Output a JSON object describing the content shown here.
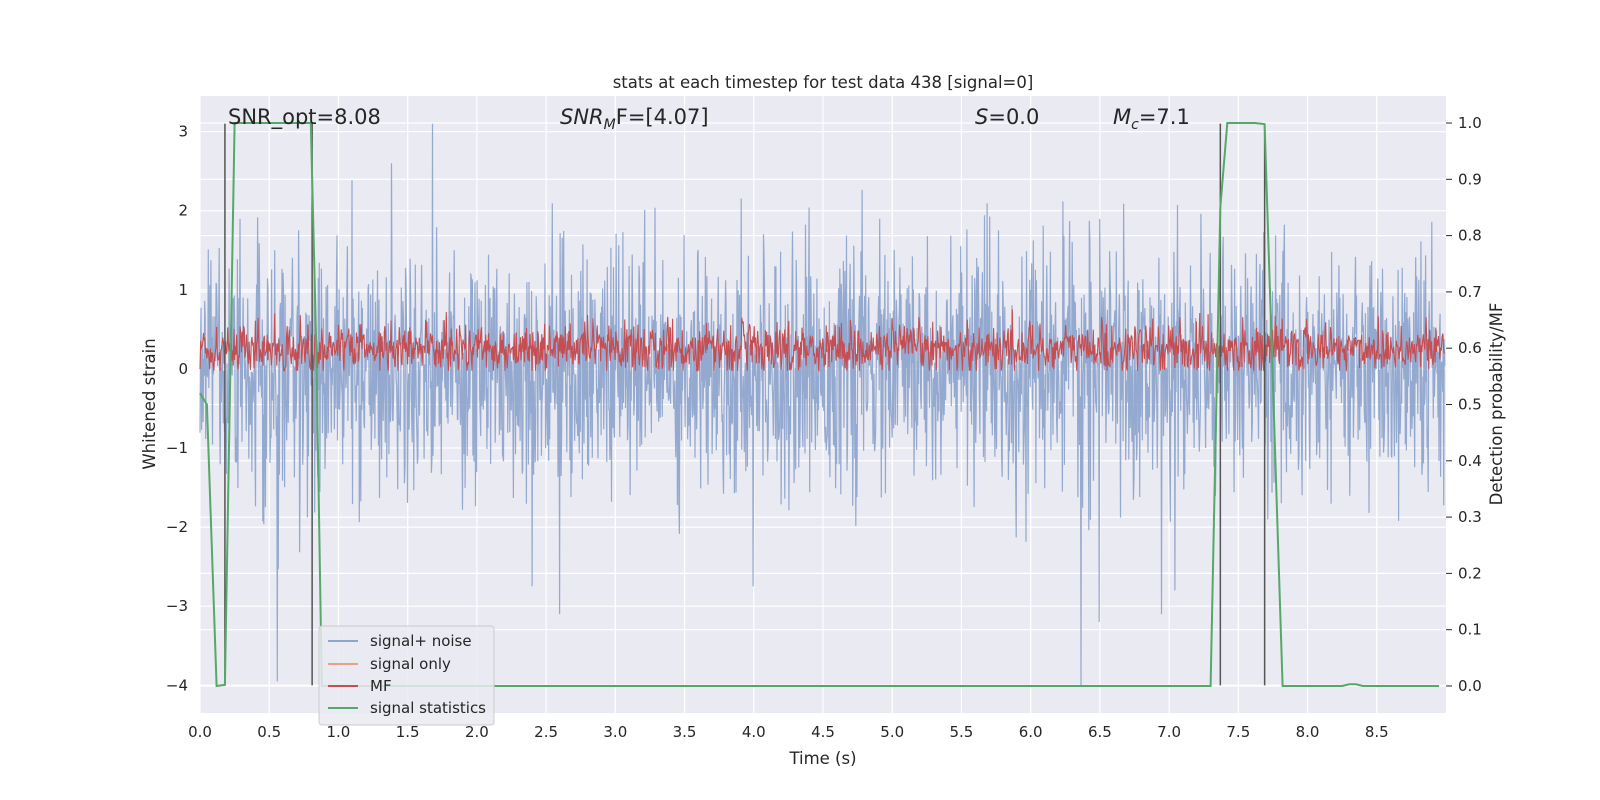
{
  "chart_data": {
    "type": "line",
    "title": "stats at each timestep for test data 438 [signal=0]",
    "xlabel": "Time (s)",
    "ylabel": "Whitened strain",
    "y2label": "Detection probability/MF",
    "xlim": [
      0.0,
      9.0
    ],
    "ylim": [
      -4.35,
      3.45
    ],
    "y2lim": [
      -0.048,
      1.048
    ],
    "grid": true,
    "legend_position": "lower-left",
    "x_ticks": [
      "0.0",
      "0.5",
      "1.0",
      "1.5",
      "2.0",
      "2.5",
      "3.0",
      "3.5",
      "4.0",
      "4.5",
      "5.0",
      "5.5",
      "6.0",
      "6.5",
      "7.0",
      "7.5",
      "8.0",
      "8.5"
    ],
    "y_ticks": [
      "−4",
      "−3",
      "−2",
      "−1",
      "0",
      "1",
      "2",
      "3"
    ],
    "y2_ticks": [
      "0.0",
      "0.1",
      "0.2",
      "0.3",
      "0.4",
      "0.5",
      "0.6",
      "0.7",
      "0.8",
      "0.9",
      "1.0"
    ],
    "annotations": {
      "snr_opt": "SNR_opt=8.08",
      "snr_mf_sym": "SNR",
      "snr_mf_sub": "M",
      "snr_mf_rest": "F=[4.07]",
      "s_sym": "S",
      "s_rest": "=0.0",
      "mc_sym": "M",
      "mc_sub": "c",
      "mc_rest": "=7.1"
    },
    "vertical_lines_x": [
      0.18,
      0.81,
      7.37,
      7.69
    ],
    "series": [
      {
        "name": "signal+ noise",
        "color": "#8fa5cc",
        "axis": "left",
        "kind": "noise",
        "amplitude_sd": 0.75,
        "notable_peaks": [
          [
            0.56,
            -3.95
          ],
          [
            1.68,
            3.1
          ],
          [
            2.4,
            -2.75
          ],
          [
            2.6,
            -3.1
          ],
          [
            4.0,
            -2.75
          ],
          [
            6.37,
            -4.0
          ],
          [
            6.5,
            -3.2
          ],
          [
            6.95,
            -3.1
          ],
          [
            7.05,
            -2.8
          ]
        ]
      },
      {
        "name": "signal only",
        "color": "#e8a183",
        "axis": "left",
        "values": []
      },
      {
        "name": "MF",
        "color": "#c44e52",
        "axis": "right",
        "kind": "noise",
        "baseline": 0.6,
        "range": [
          0.56,
          0.68
        ]
      },
      {
        "name": "signal statistics",
        "color": "#55a868",
        "axis": "right",
        "x": [
          0.0,
          0.05,
          0.12,
          0.18,
          0.25,
          0.8,
          0.84,
          0.88,
          1.0,
          7.3,
          7.37,
          7.42,
          7.62,
          7.69,
          7.82,
          8.25,
          8.3,
          8.35,
          8.4,
          8.95
        ],
        "values": [
          0.52,
          0.5,
          0.0,
          0.002,
          1.0,
          1.0,
          0.6,
          0.0,
          0.0,
          0.0,
          0.85,
          1.0,
          1.0,
          0.998,
          0.0,
          0.0,
          0.003,
          0.003,
          0.0,
          0.0
        ]
      }
    ]
  }
}
